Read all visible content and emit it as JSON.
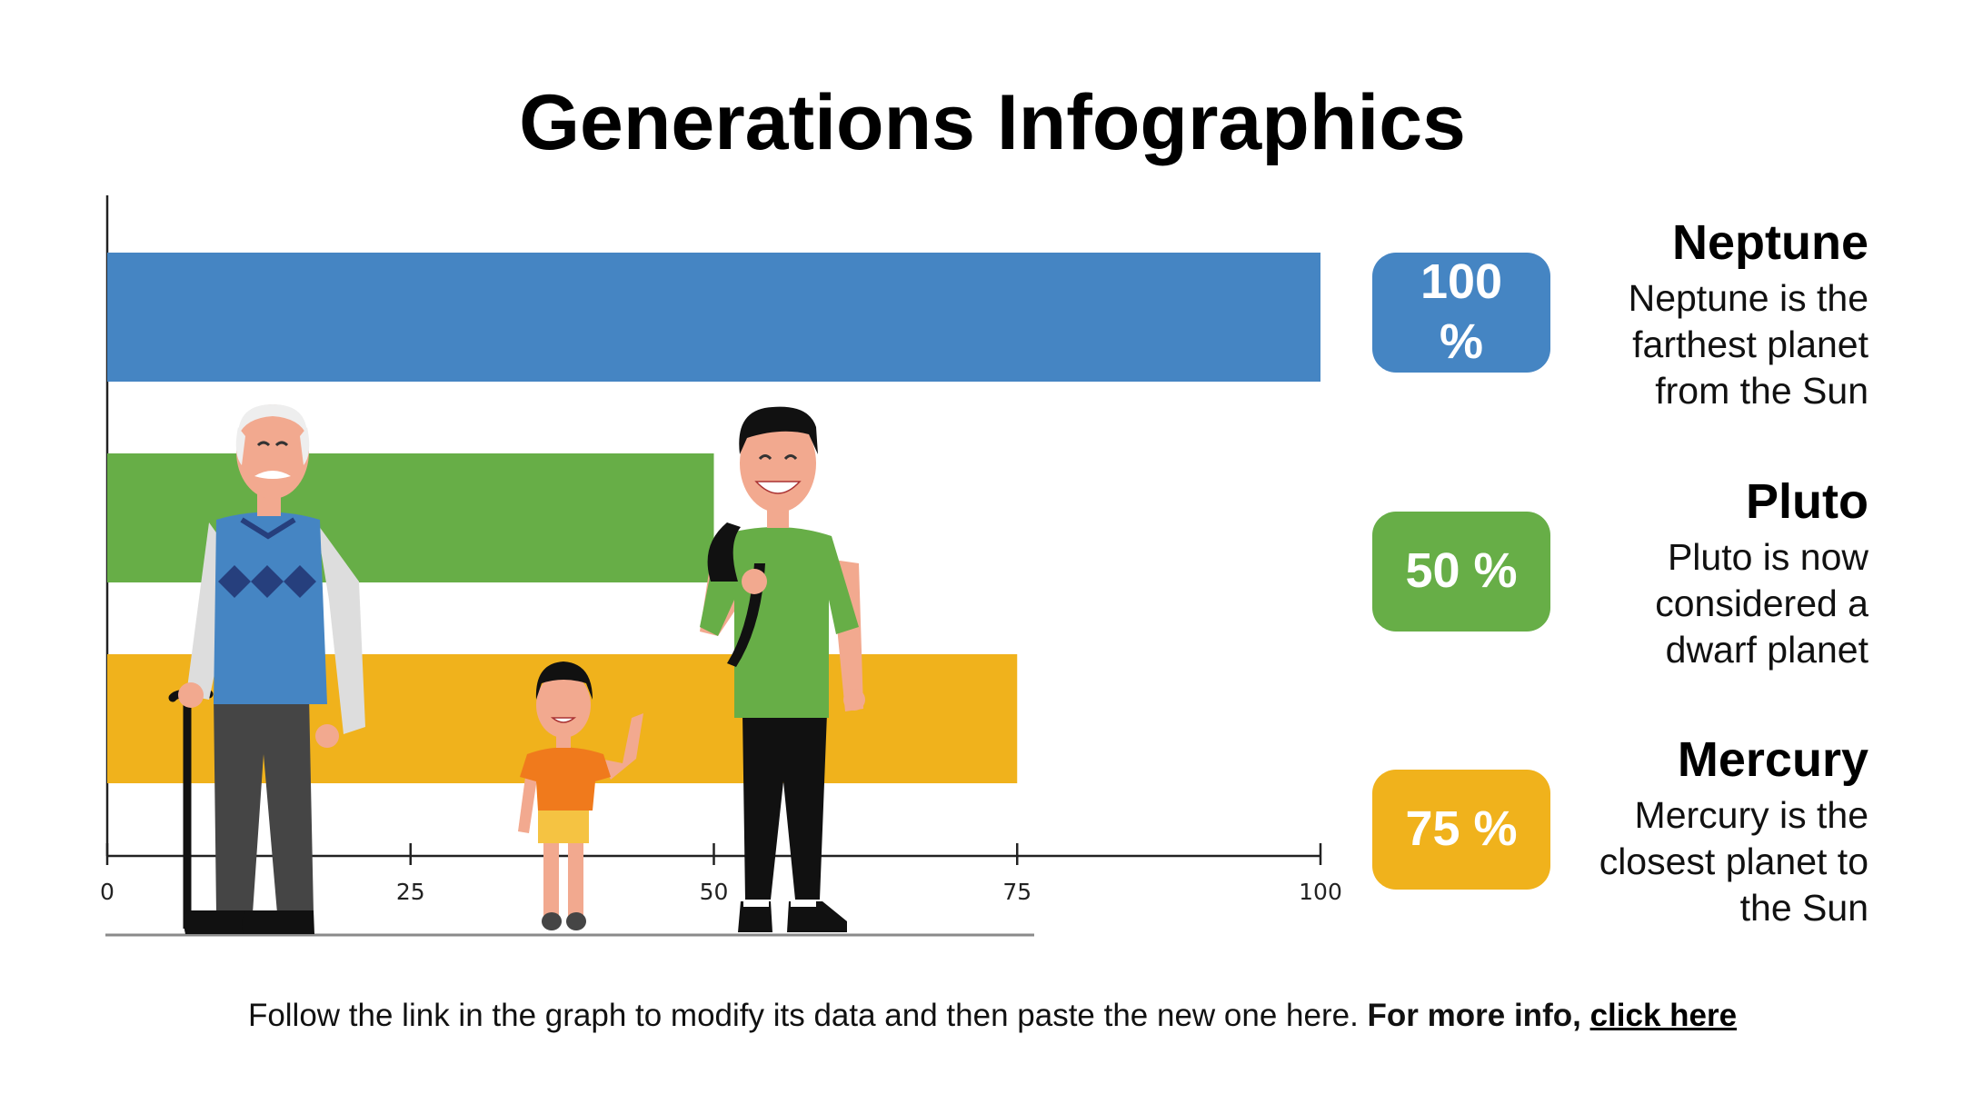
{
  "slide": {
    "title": "Generations Infographics"
  },
  "chart_data": {
    "type": "bar",
    "orientation": "horizontal",
    "series": [
      {
        "value": 100,
        "color": "#4585c3"
      },
      {
        "value": 50,
        "color": "#67ae47"
      },
      {
        "value": 75,
        "color": "#f0b21c"
      }
    ],
    "x_ticks": [
      "0",
      "25",
      "50",
      "75",
      "100"
    ],
    "xlim": [
      0,
      100
    ],
    "grid": false
  },
  "badges": [
    {
      "label": "100 %",
      "color": "#4585c3"
    },
    {
      "label": "50 %",
      "color": "#67ae47"
    },
    {
      "label": "75 %",
      "color": "#f0b21c"
    }
  ],
  "planets": [
    {
      "name": "Neptune",
      "description": "Neptune is the farthest planet from the Sun"
    },
    {
      "name": "Pluto",
      "description": "Pluto is now considered a dwarf planet"
    },
    {
      "name": "Mercury",
      "description": "Mercury is the closest planet to the Sun"
    }
  ],
  "footer": {
    "text": "Follow the link in the graph to modify its data and then paste the new one here.",
    "bold_text": "For more info,",
    "link_text": "click here"
  },
  "illustrations": {
    "grandfather": {
      "icon": "grandfather-illustration",
      "vest_color": "#4585c3",
      "shirt_color": "#dddddd",
      "pants_color": "#454545"
    },
    "child": {
      "icon": "child-illustration",
      "shirt_color": "#f07a1c",
      "shorts_color": "#f5c342"
    },
    "young_man": {
      "icon": "young-man-illustration",
      "shirt_color": "#67ae47",
      "pants_color": "#111111"
    },
    "skin_color": "#f2a98f"
  }
}
